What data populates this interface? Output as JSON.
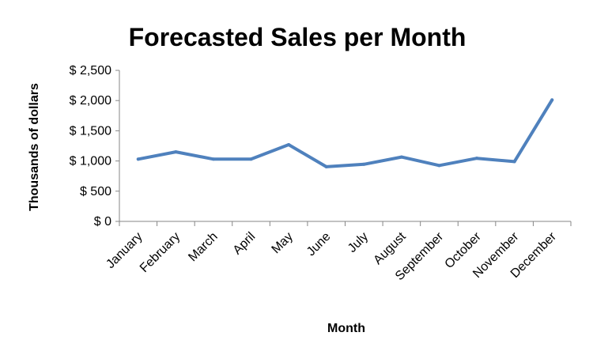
{
  "chart_data": {
    "type": "line",
    "title": "Forecasted Sales per Month",
    "xlabel": "Month",
    "ylabel": "Thousands of dollars",
    "categories": [
      "January",
      "February",
      "March",
      "April",
      "May",
      "June",
      "July",
      "August",
      "September",
      "October",
      "November",
      "December"
    ],
    "series": [
      {
        "values": [
          1030,
          1150,
          1030,
          1030,
          1270,
          905,
          945,
          1065,
          925,
          1045,
          990,
          2010
        ]
      }
    ],
    "ylim": [
      0,
      2500
    ],
    "yticks": [
      0,
      500,
      1000,
      1500,
      2000,
      2500
    ],
    "ytick_labels": [
      "$ 0",
      "$ 500",
      "$ 1,000",
      "$ 1,500",
      "$ 2,000",
      "$ 2,500"
    ],
    "grid": false,
    "legend": "none",
    "line_color": "#4f81bd"
  }
}
